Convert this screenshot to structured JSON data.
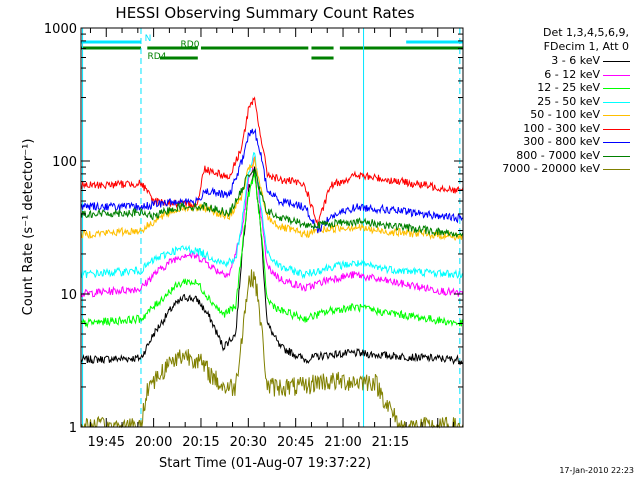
{
  "chart_data": {
    "type": "line",
    "title": "HESSI Observing Summary Count Rates",
    "xlabel": "Start Time (01-Aug-07 19:37:22)",
    "ylabel": "Count Rate (s⁻¹ detector⁻¹)",
    "yscale": "log",
    "ylim": [
      1,
      1000
    ],
    "xlim_minutes": [
      37,
      158
    ],
    "x_ticks": [
      {
        "label": "19:45",
        "minutes": 45
      },
      {
        "label": "20:00",
        "minutes": 60
      },
      {
        "label": "20:15",
        "minutes": 75
      },
      {
        "label": "20:30",
        "minutes": 90
      },
      {
        "label": "20:45",
        "minutes": 105
      },
      {
        "label": "21:00",
        "minutes": 120
      },
      {
        "label": "21:15",
        "minutes": 135
      }
    ],
    "y_ticks": [
      {
        "label": "1",
        "value": 1
      },
      {
        "label": "10",
        "value": 10
      },
      {
        "label": "100",
        "value": 100
      },
      {
        "label": "1000",
        "value": 1000
      }
    ],
    "flags": [
      {
        "label": "N",
        "color": "#00e5ff",
        "segments": [
          [
            37,
            56
          ],
          [
            140,
            158
          ]
        ]
      },
      {
        "label": "RD0",
        "color": "#008000",
        "segments": [
          [
            37,
            56
          ],
          [
            58,
            74
          ],
          [
            75,
            109
          ],
          [
            110,
            117
          ],
          [
            119,
            158
          ]
        ]
      },
      {
        "label": "RD4",
        "color": "#008000",
        "segments": [
          [
            62,
            74
          ],
          [
            110,
            117
          ]
        ]
      }
    ],
    "night_lines_minutes": [
      37.5,
      56,
      126.5,
      157
    ],
    "legend_header": [
      "Det 1,3,4,5,6,9,",
      "FDecim 1, Att 0"
    ],
    "series": [
      {
        "name": "3 - 6 keV",
        "color": "#000000",
        "points": [
          [
            37,
            3.2
          ],
          [
            56,
            3.3
          ],
          [
            60,
            5
          ],
          [
            66,
            8
          ],
          [
            70,
            9.5
          ],
          [
            74,
            9
          ],
          [
            78,
            6.5
          ],
          [
            82,
            4
          ],
          [
            86,
            5
          ],
          [
            88,
            20
          ],
          [
            90,
            60
          ],
          [
            92,
            85
          ],
          [
            94,
            30
          ],
          [
            96,
            6
          ],
          [
            100,
            4
          ],
          [
            104,
            3.6
          ],
          [
            108,
            3.2
          ],
          [
            112,
            3.4
          ],
          [
            116,
            3.5
          ],
          [
            124,
            3.6
          ],
          [
            130,
            3.5
          ],
          [
            138,
            3.4
          ],
          [
            157,
            3.2
          ]
        ]
      },
      {
        "name": "6 - 12 keV",
        "color": "#ff00ff",
        "points": [
          [
            37,
            10
          ],
          [
            56,
            11
          ],
          [
            60,
            14
          ],
          [
            66,
            18
          ],
          [
            70,
            20
          ],
          [
            74,
            19
          ],
          [
            76,
            18
          ],
          [
            80,
            15
          ],
          [
            84,
            14
          ],
          [
            88,
            30
          ],
          [
            90,
            70
          ],
          [
            92,
            105
          ],
          [
            94,
            40
          ],
          [
            96,
            16
          ],
          [
            100,
            13
          ],
          [
            104,
            12
          ],
          [
            108,
            11
          ],
          [
            112,
            12
          ],
          [
            116,
            13
          ],
          [
            124,
            14
          ],
          [
            130,
            13
          ],
          [
            138,
            12
          ],
          [
            157,
            10
          ]
        ]
      },
      {
        "name": "12 - 25 keV",
        "color": "#00ff00",
        "points": [
          [
            37,
            6
          ],
          [
            56,
            6.5
          ],
          [
            60,
            8
          ],
          [
            66,
            11
          ],
          [
            70,
            12.5
          ],
          [
            74,
            12
          ],
          [
            78,
            9
          ],
          [
            82,
            7
          ],
          [
            86,
            8
          ],
          [
            88,
            22
          ],
          [
            90,
            55
          ],
          [
            92,
            80
          ],
          [
            94,
            30
          ],
          [
            96,
            9
          ],
          [
            100,
            7.5
          ],
          [
            104,
            7
          ],
          [
            108,
            6.5
          ],
          [
            112,
            7
          ],
          [
            116,
            7.5
          ],
          [
            124,
            8
          ],
          [
            130,
            7.5
          ],
          [
            138,
            7
          ],
          [
            157,
            6
          ]
        ]
      },
      {
        "name": "25 - 50 keV",
        "color": "#00ffff",
        "points": [
          [
            37,
            14
          ],
          [
            56,
            15
          ],
          [
            60,
            18
          ],
          [
            66,
            21
          ],
          [
            70,
            22
          ],
          [
            74,
            21
          ],
          [
            78,
            19
          ],
          [
            82,
            17
          ],
          [
            86,
            18
          ],
          [
            88,
            35
          ],
          [
            90,
            80
          ],
          [
            92,
            115
          ],
          [
            94,
            45
          ],
          [
            96,
            20
          ],
          [
            100,
            16
          ],
          [
            104,
            15
          ],
          [
            108,
            14
          ],
          [
            112,
            15
          ],
          [
            116,
            16
          ],
          [
            124,
            17
          ],
          [
            130,
            16
          ],
          [
            138,
            15
          ],
          [
            157,
            14
          ]
        ]
      },
      {
        "name": "50 - 100 keV",
        "color": "#ffbf00",
        "points": [
          [
            37,
            28
          ],
          [
            56,
            30
          ],
          [
            60,
            35
          ],
          [
            66,
            42
          ],
          [
            70,
            45
          ],
          [
            74,
            44
          ],
          [
            76,
            45
          ],
          [
            80,
            41
          ],
          [
            84,
            38
          ],
          [
            88,
            55
          ],
          [
            90,
            85
          ],
          [
            92,
            100
          ],
          [
            94,
            60
          ],
          [
            96,
            38
          ],
          [
            100,
            32
          ],
          [
            104,
            30
          ],
          [
            108,
            28
          ],
          [
            112,
            30
          ],
          [
            116,
            31
          ],
          [
            124,
            32
          ],
          [
            130,
            30
          ],
          [
            138,
            29
          ],
          [
            157,
            27
          ]
        ]
      },
      {
        "name": "100 - 300 keV",
        "color": "#ff0000",
        "points": [
          [
            37,
            65
          ],
          [
            56,
            68
          ],
          [
            60,
            50
          ],
          [
            66,
            48
          ],
          [
            70,
            47
          ],
          [
            74,
            48
          ],
          [
            76,
            88
          ],
          [
            80,
            82
          ],
          [
            84,
            75
          ],
          [
            88,
            130
          ],
          [
            90,
            240
          ],
          [
            92,
            290
          ],
          [
            94,
            150
          ],
          [
            96,
            80
          ],
          [
            100,
            72
          ],
          [
            104,
            70
          ],
          [
            108,
            65
          ],
          [
            112,
            33
          ],
          [
            116,
            65
          ],
          [
            124,
            78
          ],
          [
            130,
            75
          ],
          [
            138,
            70
          ],
          [
            157,
            60
          ]
        ]
      },
      {
        "name": "300 - 800 keV",
        "color": "#0000ff",
        "points": [
          [
            37,
            46
          ],
          [
            56,
            45
          ],
          [
            60,
            47
          ],
          [
            66,
            49
          ],
          [
            70,
            50
          ],
          [
            74,
            49
          ],
          [
            76,
            60
          ],
          [
            80,
            57
          ],
          [
            84,
            55
          ],
          [
            88,
            100
          ],
          [
            90,
            155
          ],
          [
            92,
            170
          ],
          [
            94,
            110
          ],
          [
            96,
            60
          ],
          [
            100,
            50
          ],
          [
            104,
            48
          ],
          [
            108,
            45
          ],
          [
            112,
            30
          ],
          [
            116,
            38
          ],
          [
            124,
            45
          ],
          [
            130,
            44
          ],
          [
            138,
            42
          ],
          [
            157,
            37
          ]
        ]
      },
      {
        "name": "800 - 7000 keV",
        "color": "#008000",
        "points": [
          [
            37,
            40
          ],
          [
            56,
            41
          ],
          [
            60,
            38
          ],
          [
            66,
            44
          ],
          [
            70,
            46
          ],
          [
            74,
            45
          ],
          [
            76,
            46
          ],
          [
            80,
            43
          ],
          [
            84,
            41
          ],
          [
            88,
            60
          ],
          [
            90,
            80
          ],
          [
            92,
            85
          ],
          [
            94,
            55
          ],
          [
            96,
            42
          ],
          [
            100,
            37
          ],
          [
            104,
            36
          ],
          [
            108,
            33
          ],
          [
            112,
            33
          ],
          [
            116,
            34
          ],
          [
            124,
            35
          ],
          [
            130,
            34
          ],
          [
            138,
            32
          ],
          [
            157,
            28
          ]
        ]
      },
      {
        "name": "7000 - 20000 keV",
        "color": "#808000",
        "points": [
          [
            37,
            1
          ],
          [
            56,
            1
          ],
          [
            58,
            2
          ],
          [
            62,
            2.5
          ],
          [
            66,
            3.2
          ],
          [
            70,
            3.5
          ],
          [
            74,
            3.2
          ],
          [
            78,
            2.5
          ],
          [
            82,
            2
          ],
          [
            86,
            2
          ],
          [
            88,
            5
          ],
          [
            90,
            12
          ],
          [
            92,
            14
          ],
          [
            94,
            6
          ],
          [
            96,
            2
          ],
          [
            100,
            2
          ],
          [
            104,
            2
          ],
          [
            108,
            2
          ],
          [
            112,
            2.2
          ],
          [
            116,
            2.2
          ],
          [
            124,
            2.2
          ],
          [
            130,
            2.2
          ],
          [
            138,
            1
          ],
          [
            157,
            1
          ]
        ]
      }
    ]
  },
  "timestamp": "17-Jan-2010 22:23"
}
